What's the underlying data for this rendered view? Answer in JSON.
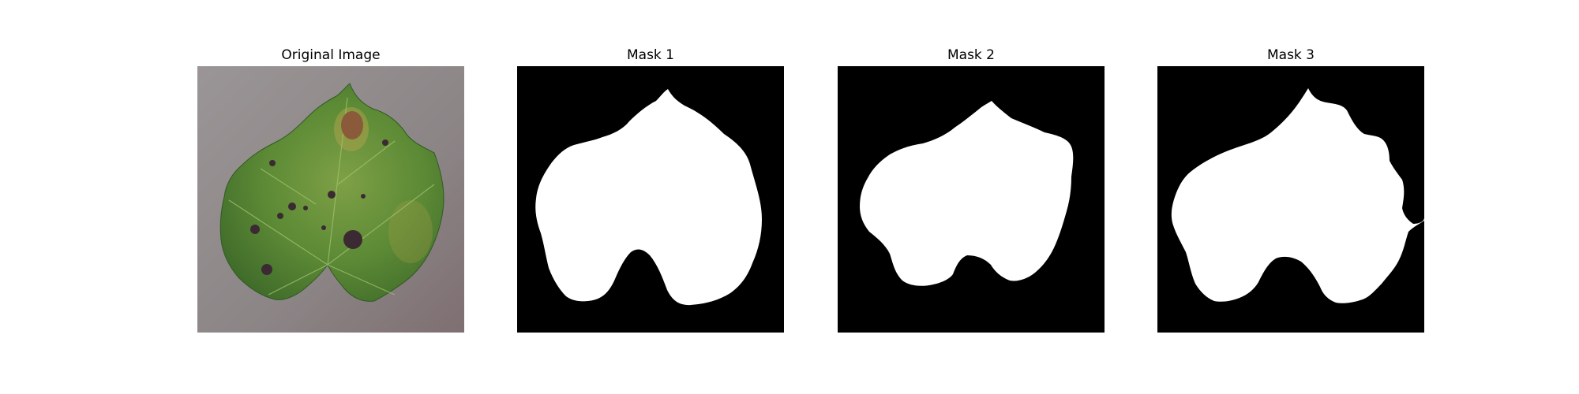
{
  "figure": {
    "panels": [
      {
        "title": "Original Image",
        "kind": "photo",
        "subject": "leaf-photo"
      },
      {
        "title": "Mask 1",
        "kind": "mask",
        "subject": "mask-image"
      },
      {
        "title": "Mask 2",
        "kind": "mask",
        "subject": "mask-image"
      },
      {
        "title": "Mask 3",
        "kind": "mask",
        "subject": "mask-image"
      }
    ]
  },
  "colors": {
    "mask_background": "#000000",
    "mask_foreground": "#ffffff",
    "photo_background": "#8f8a8b",
    "leaf_green": "#5f8b3a",
    "leaf_dark": "#3f6a2a",
    "leaf_yellow": "#b7ad4d",
    "spot_dark": "#3b2a32",
    "spot_brown": "#8a5a3a"
  }
}
